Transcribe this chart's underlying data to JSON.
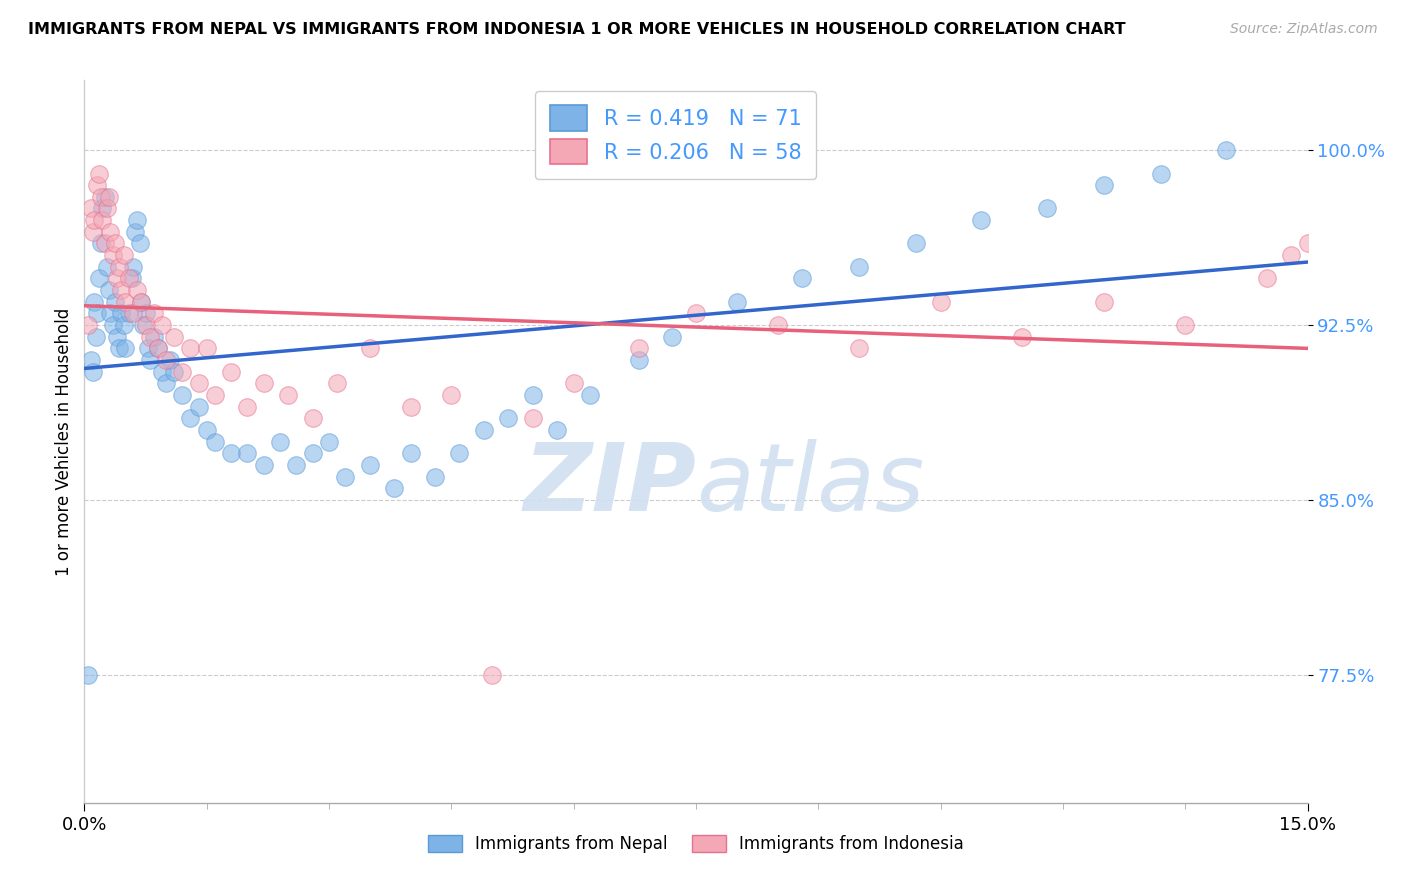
{
  "title": "IMMIGRANTS FROM NEPAL VS IMMIGRANTS FROM INDONESIA 1 OR MORE VEHICLES IN HOUSEHOLD CORRELATION CHART",
  "source": "Source: ZipAtlas.com",
  "ylabel": "1 or more Vehicles in Household",
  "y_ticks": [
    77.5,
    85.0,
    92.5,
    100.0
  ],
  "xlim": [
    0.0,
    15.0
  ],
  "ylim": [
    72.0,
    103.0
  ],
  "nepal_color": "#7EB3E8",
  "nepal_edge": "#5A9BD5",
  "indonesia_color": "#F4A7B5",
  "indonesia_edge": "#E87090",
  "line_nepal": "#3366CC",
  "line_indonesia": "#E8607A",
  "nepal_R": 0.419,
  "nepal_N": 71,
  "indonesia_R": 0.206,
  "indonesia_N": 58,
  "watermark_color": "#D0DFF0",
  "nepal_x": [
    0.05,
    0.08,
    0.1,
    0.12,
    0.14,
    0.16,
    0.18,
    0.2,
    0.22,
    0.25,
    0.28,
    0.3,
    0.32,
    0.35,
    0.38,
    0.4,
    0.42,
    0.45,
    0.48,
    0.5,
    0.55,
    0.58,
    0.6,
    0.62,
    0.65,
    0.68,
    0.7,
    0.72,
    0.75,
    0.78,
    0.8,
    0.85,
    0.9,
    0.95,
    1.0,
    1.05,
    1.1,
    1.2,
    1.3,
    1.4,
    1.5,
    1.6,
    1.8,
    2.0,
    2.2,
    2.4,
    2.6,
    2.8,
    3.0,
    3.2,
    3.5,
    3.8,
    4.0,
    4.3,
    4.6,
    4.9,
    5.2,
    5.5,
    5.8,
    6.2,
    6.8,
    7.2,
    8.0,
    8.8,
    9.5,
    10.2,
    11.0,
    11.8,
    12.5,
    13.2,
    14.0
  ],
  "nepal_y": [
    77.5,
    91.0,
    90.5,
    93.5,
    92.0,
    93.0,
    94.5,
    96.0,
    97.5,
    98.0,
    95.0,
    94.0,
    93.0,
    92.5,
    93.5,
    92.0,
    91.5,
    93.0,
    92.5,
    91.5,
    93.0,
    94.5,
    95.0,
    96.5,
    97.0,
    96.0,
    93.5,
    92.5,
    93.0,
    91.5,
    91.0,
    92.0,
    91.5,
    90.5,
    90.0,
    91.0,
    90.5,
    89.5,
    88.5,
    89.0,
    88.0,
    87.5,
    87.0,
    87.0,
    86.5,
    87.5,
    86.5,
    87.0,
    87.5,
    86.0,
    86.5,
    85.5,
    87.0,
    86.0,
    87.0,
    88.0,
    88.5,
    89.5,
    88.0,
    89.5,
    91.0,
    92.0,
    93.5,
    94.5,
    95.0,
    96.0,
    97.0,
    97.5,
    98.5,
    99.0,
    100.0
  ],
  "indonesia_x": [
    0.05,
    0.08,
    0.1,
    0.12,
    0.15,
    0.18,
    0.2,
    0.22,
    0.25,
    0.28,
    0.3,
    0.32,
    0.35,
    0.38,
    0.4,
    0.42,
    0.45,
    0.48,
    0.5,
    0.55,
    0.6,
    0.65,
    0.7,
    0.75,
    0.8,
    0.85,
    0.9,
    0.95,
    1.0,
    1.1,
    1.2,
    1.3,
    1.4,
    1.5,
    1.6,
    1.8,
    2.0,
    2.2,
    2.5,
    2.8,
    3.1,
    3.5,
    4.0,
    4.5,
    5.0,
    5.5,
    6.0,
    6.8,
    7.5,
    8.5,
    9.5,
    10.5,
    11.5,
    12.5,
    13.5,
    14.5,
    14.8,
    15.0
  ],
  "indonesia_y": [
    92.5,
    97.5,
    96.5,
    97.0,
    98.5,
    99.0,
    98.0,
    97.0,
    96.0,
    97.5,
    98.0,
    96.5,
    95.5,
    96.0,
    94.5,
    95.0,
    94.0,
    95.5,
    93.5,
    94.5,
    93.0,
    94.0,
    93.5,
    92.5,
    92.0,
    93.0,
    91.5,
    92.5,
    91.0,
    92.0,
    90.5,
    91.5,
    90.0,
    91.5,
    89.5,
    90.5,
    89.0,
    90.0,
    89.5,
    88.5,
    90.0,
    91.5,
    89.0,
    89.5,
    77.5,
    88.5,
    90.0,
    91.5,
    93.0,
    92.5,
    91.5,
    93.5,
    92.0,
    93.5,
    92.5,
    94.5,
    95.5,
    96.0
  ],
  "x_minor_ticks": [
    1.5,
    3.0,
    4.5,
    6.0,
    7.5,
    9.0,
    10.5,
    12.0,
    13.5
  ]
}
